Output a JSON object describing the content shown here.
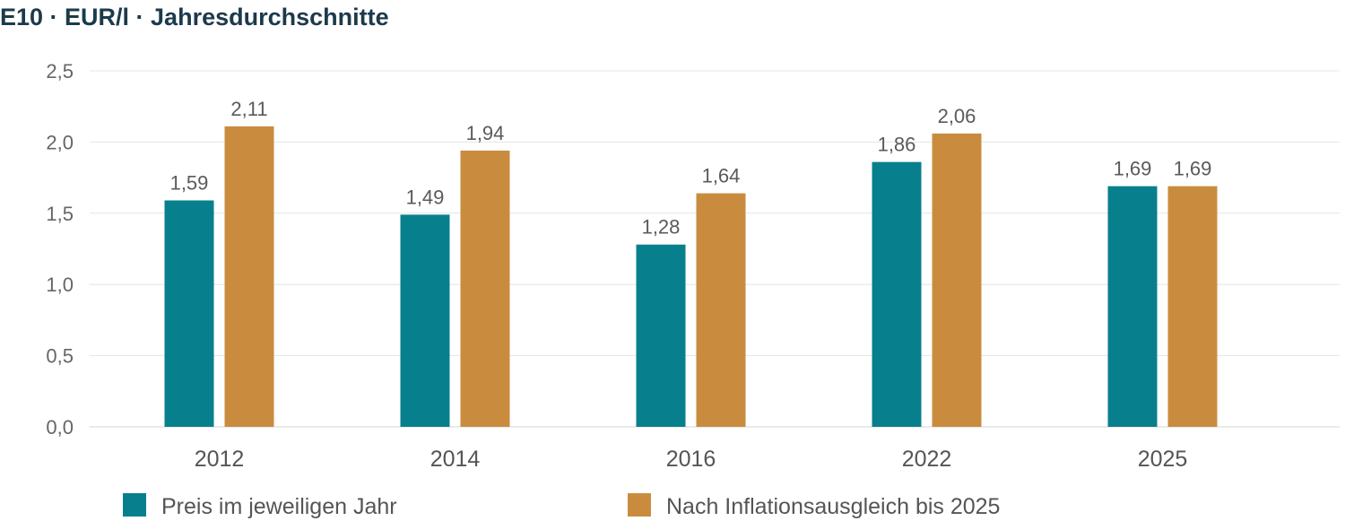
{
  "chart_data": {
    "type": "bar",
    "title": "E10 · EUR/l · Jahresdurchschnitte",
    "categories": [
      "2012",
      "2014",
      "2016",
      "2022",
      "2025"
    ],
    "series": [
      {
        "name": "Preis im jeweiligen Jahr",
        "values": [
          1.59,
          1.49,
          1.28,
          1.86,
          1.69
        ],
        "labels": [
          "1,59",
          "1,49",
          "1,28",
          "1,86",
          "1,69"
        ],
        "color": "#087f8c"
      },
      {
        "name": "Nach Inflationsausgleich bis 2025",
        "values": [
          2.11,
          1.94,
          1.64,
          2.06,
          1.69
        ],
        "labels": [
          "2,11",
          "1,94",
          "1,64",
          "2,06",
          "1,69"
        ],
        "color": "#c98c3f"
      }
    ],
    "ylim": [
      0,
      2.5
    ],
    "yticks": [
      0,
      0.5,
      1,
      1.5,
      2,
      2.5
    ],
    "ytick_labels": [
      "0,0",
      "0,5",
      "1,0",
      "1,5",
      "2,0",
      "2,5"
    ],
    "xlabel": "",
    "ylabel": "",
    "grid": true,
    "legend_position": "bottom"
  }
}
